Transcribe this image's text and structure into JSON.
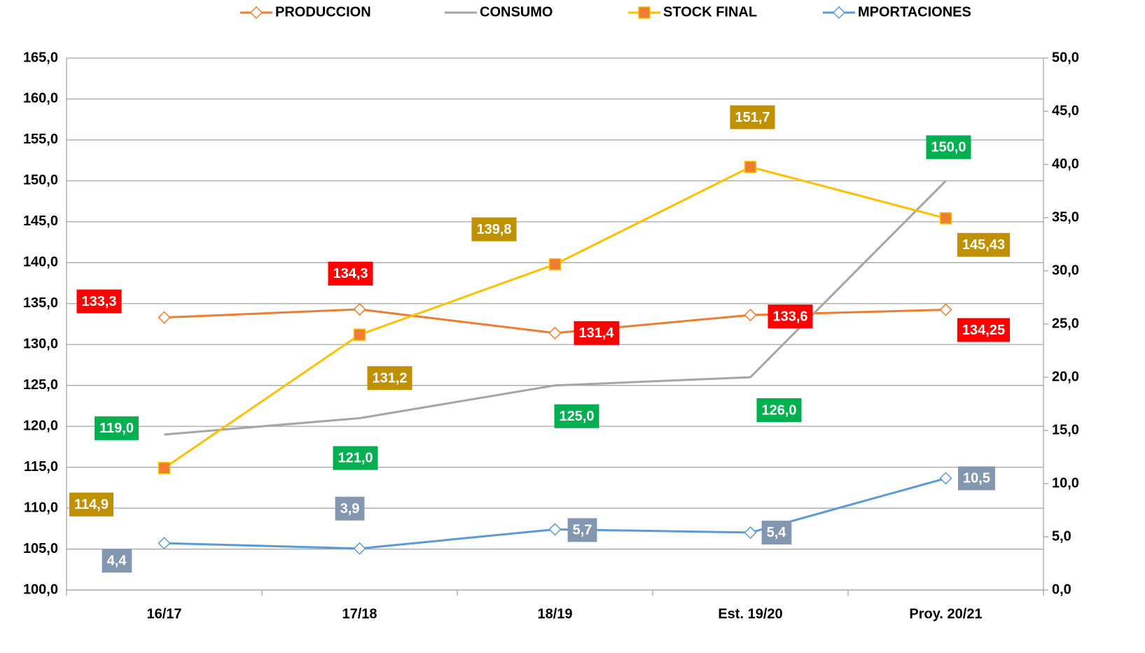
{
  "chart_data": {
    "type": "line",
    "categories": [
      "16/17",
      "17/18",
      "18/19",
      "Est. 19/20",
      "Proy. 20/21"
    ],
    "ylim": [
      100,
      165
    ],
    "yticks": [
      {
        "value": 100,
        "label": "100,0"
      },
      {
        "value": 105,
        "label": "105,0"
      },
      {
        "value": 110,
        "label": "110,0"
      },
      {
        "value": 115,
        "label": "115,0"
      },
      {
        "value": 120,
        "label": "120,0"
      },
      {
        "value": 125,
        "label": "125,0"
      },
      {
        "value": 130,
        "label": "130,0"
      },
      {
        "value": 135,
        "label": "135,0"
      },
      {
        "value": 140,
        "label": "140,0"
      },
      {
        "value": 145,
        "label": "145,0"
      },
      {
        "value": 150,
        "label": "150,0"
      },
      {
        "value": 155,
        "label": "155,0"
      },
      {
        "value": 160,
        "label": "160,0"
      },
      {
        "value": 165,
        "label": "165,0"
      }
    ],
    "y2lim": [
      0,
      50
    ],
    "y2ticks": [
      {
        "value": 0,
        "label": "0,0"
      },
      {
        "value": 5,
        "label": "5,0"
      },
      {
        "value": 10,
        "label": "10,0"
      },
      {
        "value": 15,
        "label": "15,0"
      },
      {
        "value": 20,
        "label": "20,0"
      },
      {
        "value": 25,
        "label": "25,0"
      },
      {
        "value": 30,
        "label": "30,0"
      },
      {
        "value": 35,
        "label": "35,0"
      },
      {
        "value": 40,
        "label": "40,0"
      },
      {
        "value": 45,
        "label": "45,0"
      },
      {
        "value": 50,
        "label": "50,0"
      }
    ],
    "grid": true,
    "legend": "top",
    "series": [
      {
        "name": "PRODUCCION",
        "color": "#ed7d31",
        "marker": "diamond",
        "label_color": "#ff0000",
        "values": [
          133.3,
          134.3,
          131.4,
          133.6,
          134.25
        ],
        "value_labels": [
          "133,3",
          "134,3",
          "131,4",
          "133,6",
          "134,25"
        ]
      },
      {
        "name": "CONSUMO",
        "color": "#a5a5a5",
        "marker": "none",
        "label_color": "#00b050",
        "values": [
          119,
          121,
          125,
          126,
          150
        ],
        "value_labels": [
          "119,0",
          "121,0",
          "125,0",
          "126,0",
          "150,0"
        ]
      },
      {
        "name": "STOCK FINAL",
        "color": "#ffc000",
        "marker": "square",
        "label_color": "#bf9000",
        "values": [
          114.9,
          131.2,
          139.8,
          151.7,
          145.43
        ],
        "value_labels": [
          "114,9",
          "131,2",
          "139,8",
          "151,7",
          "145,43"
        ]
      },
      {
        "name": "MPORTACIONES",
        "color": "#5b9bd5",
        "marker": "diamond",
        "axis": "y2",
        "label_color": "#8497b0",
        "values": [
          4.4,
          3.9,
          5.7,
          5.4,
          10.5
        ],
        "value_labels": [
          "4,4",
          "3,9",
          "5,7",
          "5,4",
          "10,5"
        ]
      }
    ]
  }
}
